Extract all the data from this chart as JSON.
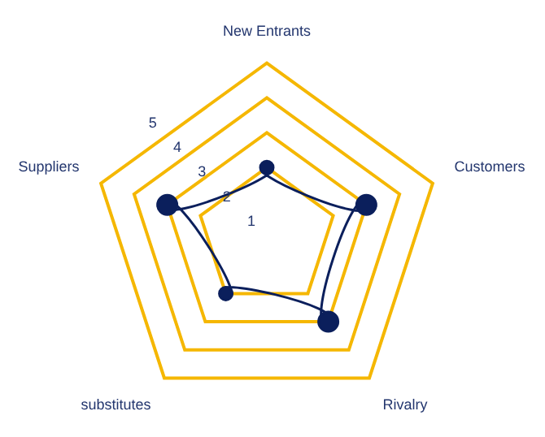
{
  "chart_data": {
    "type": "radar",
    "categories": [
      "New Entrants",
      "Customers",
      "Rivalry",
      "substitutes",
      "Suppliers"
    ],
    "series": [
      {
        "color": "#0b1f5c",
        "values": [
          2,
          3,
          3,
          2,
          3
        ]
      }
    ],
    "ylim": [
      0,
      5
    ],
    "yticks": [
      1,
      2,
      3,
      4,
      5
    ],
    "grid": true,
    "marker": "circle",
    "legend": false
  }
}
